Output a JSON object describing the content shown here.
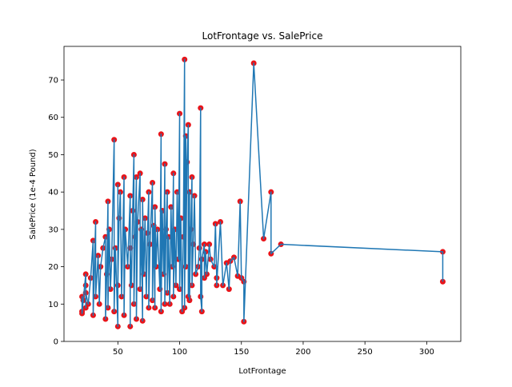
{
  "chart_data": {
    "type": "line",
    "markers": true,
    "title": "LotFrontage vs. SalePrice",
    "x_label": "LotFrontage",
    "y_label": "SalePrice (1e-4 Pound)",
    "line_color": "#1f77b4",
    "marker_color": "#e8141a",
    "xlim": [
      6.4,
      327.6
    ],
    "ylim": [
      0,
      79
    ],
    "xticks": [
      50,
      100,
      150,
      200,
      250,
      300
    ],
    "yticks": [
      0,
      10,
      20,
      30,
      40,
      50,
      60,
      70
    ],
    "x": [
      21,
      21,
      21,
      22,
      24,
      24,
      24,
      24,
      26,
      28,
      30,
      30,
      32,
      32,
      34,
      35,
      36,
      38,
      40,
      40,
      41,
      42,
      42,
      43,
      44,
      45,
      47,
      47,
      48,
      50,
      50,
      50,
      51,
      52,
      53,
      55,
      55,
      56,
      58,
      60,
      60,
      60,
      61,
      62,
      63,
      63,
      64,
      65,
      65,
      66,
      68,
      68,
      69,
      70,
      70,
      71,
      72,
      73,
      74,
      75,
      75,
      76,
      78,
      78,
      79,
      80,
      80,
      81,
      82,
      84,
      85,
      85,
      86,
      87,
      88,
      88,
      89,
      90,
      90,
      91,
      92,
      93,
      94,
      95,
      95,
      96,
      97,
      98,
      99,
      100,
      100,
      101,
      102,
      103,
      104,
      104,
      105,
      105,
      106,
      107,
      107,
      108,
      108,
      109,
      110,
      110,
      111,
      112,
      113,
      115,
      116,
      117,
      117,
      118,
      118,
      120,
      120,
      121,
      122,
      124,
      125,
      128,
      129,
      130,
      130,
      133,
      135,
      138,
      140,
      141,
      144,
      147,
      149,
      150,
      152,
      152,
      160,
      168,
      174,
      174,
      182,
      313,
      313
    ],
    "values": [
      8,
      12,
      7.5,
      11,
      18,
      9,
      15,
      13,
      10,
      17,
      27,
      7,
      32,
      12,
      23,
      10,
      20,
      25,
      28,
      6,
      18,
      37.5,
      9,
      30,
      14,
      22,
      54,
      8,
      25,
      4,
      42,
      15,
      33,
      40,
      12,
      44,
      7,
      30,
      20,
      39,
      4,
      25,
      15,
      35,
      50,
      10,
      28,
      44,
      6,
      32,
      45,
      14,
      30,
      5.5,
      38,
      18,
      33,
      12,
      29,
      40,
      9,
      26,
      42.5,
      11,
      31,
      9,
      36,
      20,
      30,
      14,
      55.5,
      8,
      35,
      18,
      47.5,
      10,
      30,
      40,
      13,
      28,
      10,
      36,
      20,
      45,
      12,
      30,
      15,
      40,
      22,
      61,
      14,
      33,
      8,
      28,
      75.5,
      9,
      55,
      20,
      48,
      58,
      12,
      40,
      11,
      30,
      44,
      15,
      26,
      39,
      18,
      20,
      25,
      62.5,
      12,
      8,
      22,
      26,
      17,
      24,
      18,
      26,
      22,
      20,
      31.5,
      17,
      15,
      32,
      15,
      21,
      14,
      21.5,
      22.5,
      17.5,
      37.5,
      17,
      16,
      5.3,
      74.5,
      27.5,
      40,
      23.5,
      26,
      24,
      16
    ]
  }
}
